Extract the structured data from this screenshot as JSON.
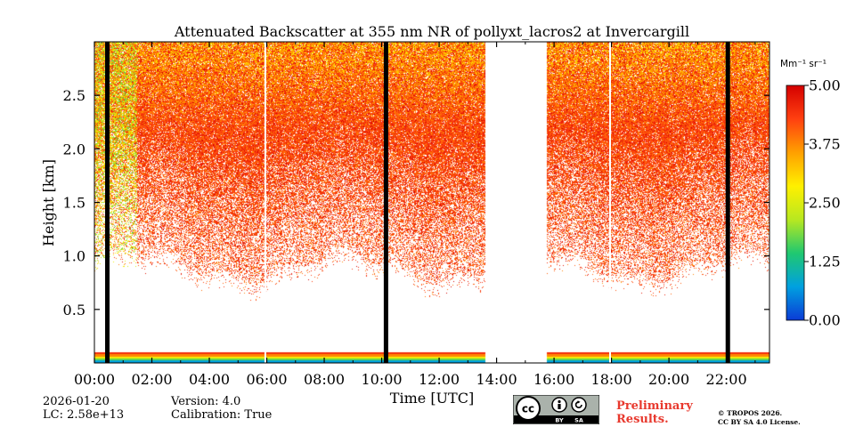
{
  "chart_data": {
    "type": "heatmap",
    "title": "Attenuated Backscatter at 355 nm NR of pollyxt_lacros2 at Invercargill",
    "xlabel": "Time [UTC]",
    "ylabel": "Height [km]",
    "xlim_hours": [
      0,
      23.5
    ],
    "ylim_km": [
      0,
      3.0
    ],
    "x_ticks": [
      {
        "value": 0,
        "label": "00:00"
      },
      {
        "value": 2,
        "label": "02:00"
      },
      {
        "value": 4,
        "label": "04:00"
      },
      {
        "value": 6,
        "label": "06:00"
      },
      {
        "value": 8,
        "label": "08:00"
      },
      {
        "value": 10,
        "label": "10:00"
      },
      {
        "value": 12,
        "label": "12:00"
      },
      {
        "value": 14,
        "label": "14:00"
      },
      {
        "value": 16,
        "label": "16:00"
      },
      {
        "value": 18,
        "label": "18:00"
      },
      {
        "value": 20,
        "label": "20:00"
      },
      {
        "value": 22,
        "label": "22:00"
      }
    ],
    "y_ticks": [
      {
        "value": 0.5,
        "label": "0.5"
      },
      {
        "value": 1.0,
        "label": "1.0"
      },
      {
        "value": 1.5,
        "label": "1.5"
      },
      {
        "value": 2.0,
        "label": "2.0"
      },
      {
        "value": 2.5,
        "label": "2.5"
      }
    ],
    "colorbar": {
      "unit": "Mm⁻¹ sr⁻¹",
      "min": 0.0,
      "max": 5.0,
      "ticks": [
        {
          "value": 0.0,
          "label": "0.00"
        },
        {
          "value": 1.25,
          "label": "1.25"
        },
        {
          "value": 2.5,
          "label": "2.50"
        },
        {
          "value": 3.75,
          "label": "3.75"
        },
        {
          "value": 5.0,
          "label": "5.00"
        }
      ],
      "colors": [
        "#0b3bd6",
        "#00a0e0",
        "#20c870",
        "#b8e820",
        "#fff000",
        "#ffa000",
        "#ff4010",
        "#d40000"
      ]
    },
    "no_data_gaps_hours": [
      [
        13.6,
        15.75
      ]
    ],
    "black_lines_hours": [
      0.45,
      10.15,
      22.05
    ],
    "white_lines_hours": [
      5.95,
      17.95
    ],
    "near_ground_band_km": [
      0.0,
      0.1
    ],
    "signal_bottom_km_approx": 0.8,
    "dense_signal_value_approx": 4.5
  },
  "footer": {
    "date": "2026-01-20",
    "lc": "LC: 2.58e+13",
    "version": "Version: 4.0",
    "calibration": "Calibration: True",
    "preliminary_line1": "Preliminary",
    "preliminary_line2": "Results.",
    "copyright_line1": "© TROPOS 2026.",
    "copyright_line2": "CC BY SA 4.0 License.",
    "badge_by": "BY",
    "badge_sa": "SA"
  }
}
